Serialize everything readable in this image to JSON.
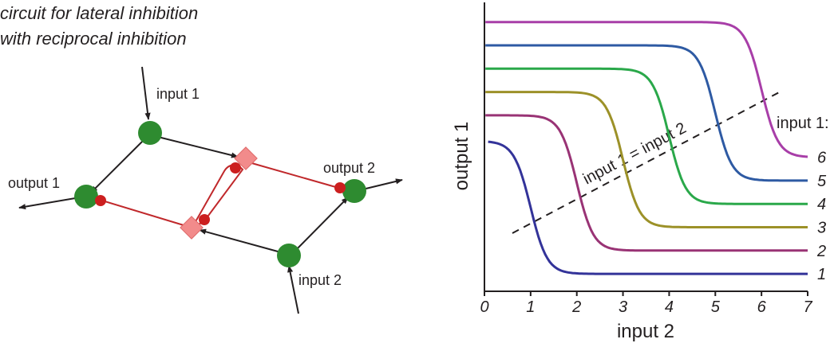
{
  "circuit": {
    "title_line1": "circuit for lateral inhibition",
    "title_line2": "with reciprocal inhibition",
    "input1_label": "input 1",
    "input2_label": "input 2",
    "output1_label": "output 1",
    "output2_label": "output 2",
    "colors": {
      "neuron": "#2e8b30",
      "inhibitory_synapse": "#cc1f1f",
      "interneuron": "#f28b8b",
      "wire_excitatory": "#231f20",
      "wire_inhibitory": "#c0282b"
    }
  },
  "chart_data": {
    "type": "line",
    "xlabel": "input 2",
    "ylabel": "output 1",
    "xlim": [
      0,
      7
    ],
    "x_ticks": [
      "0",
      "1",
      "2",
      "3",
      "4",
      "5",
      "6",
      "7"
    ],
    "y_ticks_shown": false,
    "legend_title": "input 1:",
    "diagonal_label": "input 1 = input 2",
    "series": [
      {
        "name": "1",
        "color": "#333399",
        "threshold": 1,
        "high": 5.9,
        "low": 0.2
      },
      {
        "name": "2",
        "color": "#993375",
        "threshold": 2,
        "high": 7.0,
        "low": 1.2
      },
      {
        "name": "3",
        "color": "#9c9128",
        "threshold": 3,
        "high": 8.0,
        "low": 2.2
      },
      {
        "name": "4",
        "color": "#2aa84a",
        "threshold": 4,
        "high": 9.0,
        "low": 3.2
      },
      {
        "name": "5",
        "color": "#2e5aa3",
        "threshold": 5,
        "high": 10.0,
        "low": 4.2
      },
      {
        "name": "6",
        "color": "#a83ea8",
        "threshold": 6,
        "high": 11.0,
        "low": 5.2
      }
    ]
  }
}
